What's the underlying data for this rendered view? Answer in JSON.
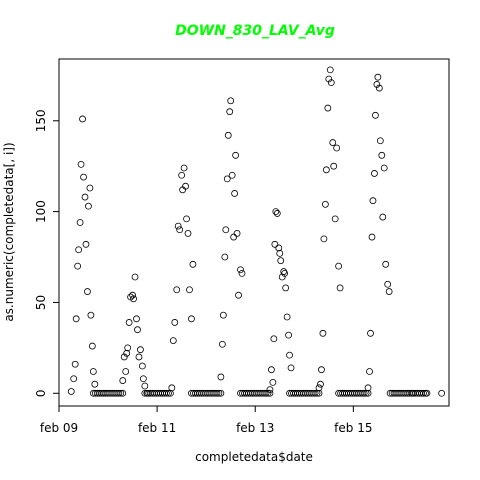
{
  "chart_data": {
    "type": "scatter",
    "title": "DOWN_830_LAV_Avg",
    "title_color": "#00ff00",
    "xlabel": "completedata$date",
    "ylabel": "as.numeric(completedata[, i])",
    "x_tick_labels": [
      "feb 09",
      "feb 11",
      "feb 13",
      "feb 15"
    ],
    "y_tick_labels": [
      "0",
      "50",
      "100",
      "150"
    ],
    "y_ticks": [
      0,
      50,
      100,
      150
    ],
    "xlim": [
      9.0,
      16.95
    ],
    "ylim": [
      -7,
      184
    ],
    "marker": "open-circle",
    "marker_color": "#000000",
    "grid": false,
    "legend": "none",
    "series": [
      {
        "x": [
          9.25,
          9.3,
          9.33,
          9.35,
          9.38,
          9.4,
          9.43,
          9.45,
          9.48,
          9.5,
          9.53,
          9.55,
          9.58,
          9.6,
          9.63,
          9.65,
          9.68,
          9.7,
          9.73,
          9.9,
          10.3,
          10.33,
          10.36,
          10.38,
          10.4,
          10.43,
          10.46,
          10.5,
          10.52,
          10.55,
          10.58,
          10.6,
          10.63,
          10.66,
          10.7,
          10.72,
          10.75,
          10.8,
          11.3,
          11.33,
          11.36,
          11.4,
          11.43,
          11.46,
          11.5,
          11.52,
          11.55,
          11.58,
          11.6,
          11.63,
          11.66,
          11.7,
          11.73,
          12.3,
          12.33,
          12.35,
          12.38,
          12.4,
          12.43,
          12.45,
          12.48,
          12.5,
          12.53,
          12.56,
          12.58,
          12.6,
          12.63,
          12.66,
          12.7,
          12.73,
          13.3,
          13.33,
          13.36,
          13.38,
          13.4,
          13.42,
          13.45,
          13.48,
          13.5,
          13.52,
          13.55,
          13.58,
          13.6,
          13.62,
          13.65,
          13.68,
          13.7,
          13.73,
          14.3,
          14.33,
          14.35,
          14.38,
          14.4,
          14.43,
          14.45,
          14.48,
          14.5,
          14.53,
          14.55,
          14.58,
          14.6,
          14.63,
          14.66,
          14.7,
          14.73,
          15.3,
          15.33,
          15.35,
          15.38,
          15.4,
          15.43,
          15.45,
          15.48,
          15.5,
          15.53,
          15.55,
          15.58,
          15.6,
          15.63,
          15.66,
          15.7,
          15.73,
          16.2,
          16.5,
          16.8
        ],
        "y": [
          1,
          8,
          16,
          41,
          70,
          79,
          94,
          126,
          151,
          119,
          108,
          82,
          56,
          103,
          113,
          43,
          26,
          12,
          5,
          0,
          7,
          20,
          12,
          22,
          25,
          39,
          53,
          54,
          52,
          64,
          41,
          35,
          20,
          24,
          15,
          8,
          4,
          0,
          3,
          29,
          39,
          57,
          92,
          90,
          120,
          112,
          124,
          114,
          96,
          88,
          57,
          41,
          71,
          9,
          27,
          43,
          75,
          90,
          118,
          142,
          155,
          161,
          120,
          86,
          110,
          131,
          88,
          54,
          68,
          66,
          2,
          13,
          6,
          30,
          82,
          100,
          99,
          80,
          77,
          73,
          64,
          67,
          66,
          58,
          42,
          32,
          21,
          14,
          3,
          5,
          13,
          33,
          85,
          104,
          123,
          157,
          173,
          178,
          171,
          138,
          125,
          96,
          135,
          70,
          58,
          3,
          12,
          33,
          86,
          106,
          121,
          153,
          170,
          174,
          168,
          139,
          131,
          97,
          124,
          71,
          60,
          56,
          0,
          0,
          0
        ]
      }
    ]
  }
}
